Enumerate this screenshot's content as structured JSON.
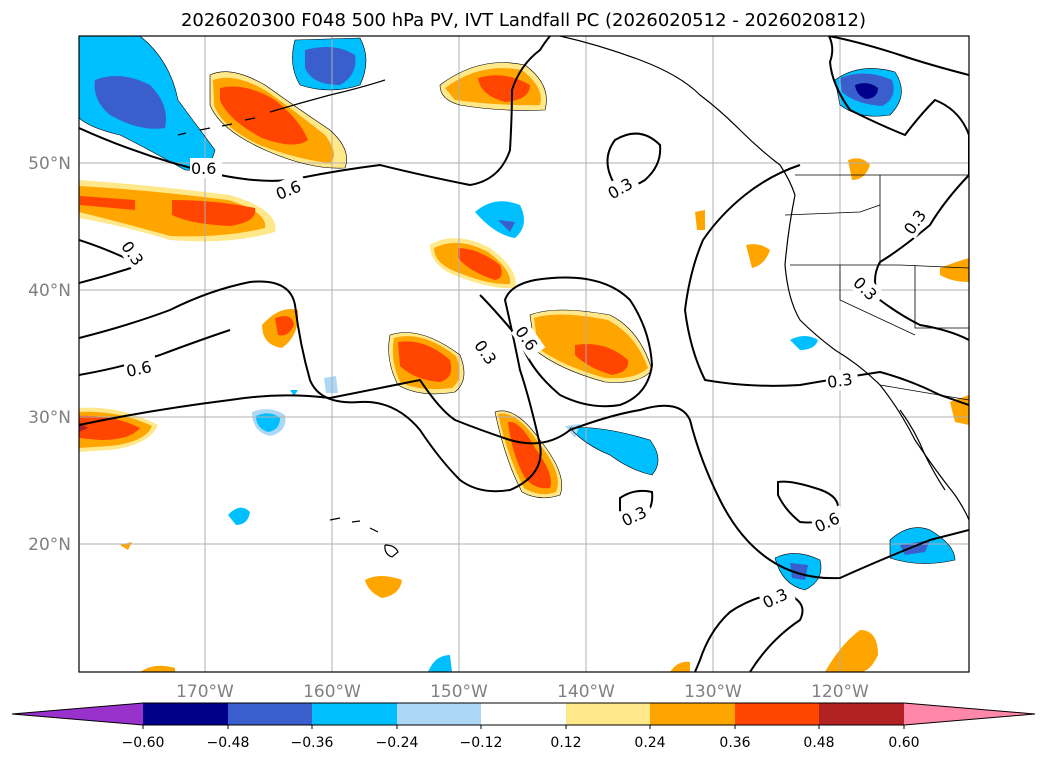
{
  "title": "2026020300 F048 500 hPa PV, IVT Landfall PC (2026020512 - 2026020812)",
  "axes": {
    "lon_labels": [
      "170°W",
      "160°W",
      "150°W",
      "140°W",
      "130°W",
      "120°W"
    ],
    "lat_labels": [
      "50°N",
      "40°N",
      "30°N",
      "20°N"
    ]
  },
  "contour_labels": {
    "a": "0.6",
    "b": "0.6",
    "c": "0.3",
    "d": "0.6",
    "e": "0.3",
    "f": "0.6",
    "g": "0.3",
    "h": "0.3",
    "i": "0.3",
    "j": "0.3",
    "k": "0.6",
    "l": "0.3"
  },
  "colorbar": {
    "ticks": [
      "−0.60",
      "−0.48",
      "−0.36",
      "−0.24",
      "−0.12",
      "0.12",
      "0.24",
      "0.36",
      "0.48",
      "0.60"
    ],
    "colors": [
      "#9932cc",
      "#00008b",
      "#3a5fcd",
      "#00bfff",
      "#add8f5",
      "#ffffff",
      "#ffe88a",
      "#ffa500",
      "#ff4500",
      "#b22222",
      "#ff88aa"
    ]
  }
}
